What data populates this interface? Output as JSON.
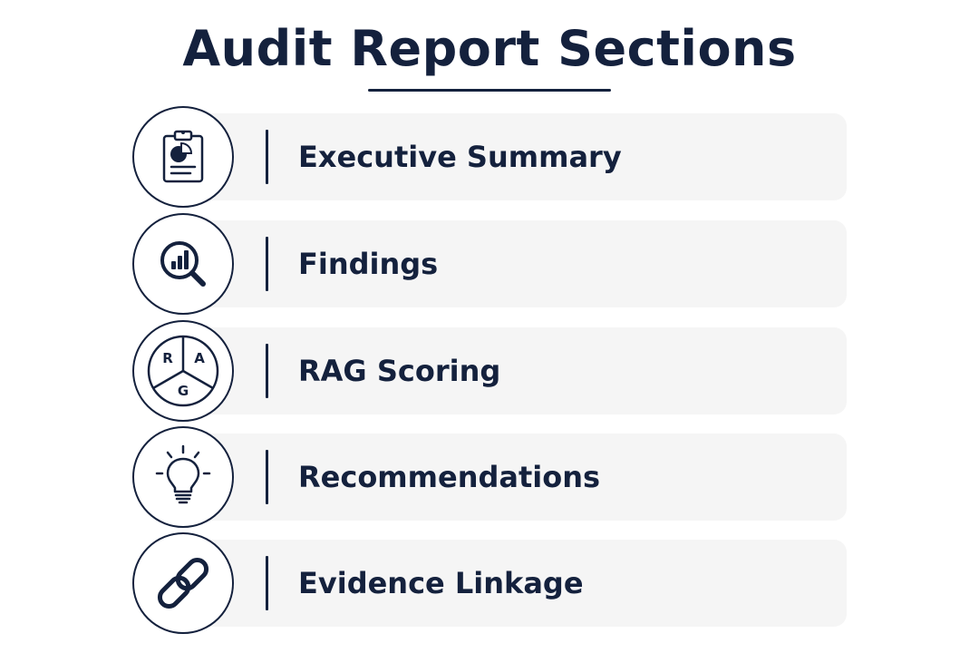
{
  "title": "Audit Report Sections",
  "sections": [
    {
      "label": "Executive Summary",
      "icon": "clipboard-pie-chart-icon"
    },
    {
      "label": "Findings",
      "icon": "magnifier-bar-chart-icon"
    },
    {
      "label": "RAG Scoring",
      "icon": "rag-pie-icon",
      "icon_letters": [
        "R",
        "A",
        "G"
      ]
    },
    {
      "label": "Recommendations",
      "icon": "lightbulb-icon"
    },
    {
      "label": "Evidence Linkage",
      "icon": "chain-link-icon"
    }
  ],
  "colors": {
    "primary": "#14213d",
    "card_background": "#f5f5f5",
    "page_background": "#ffffff"
  }
}
